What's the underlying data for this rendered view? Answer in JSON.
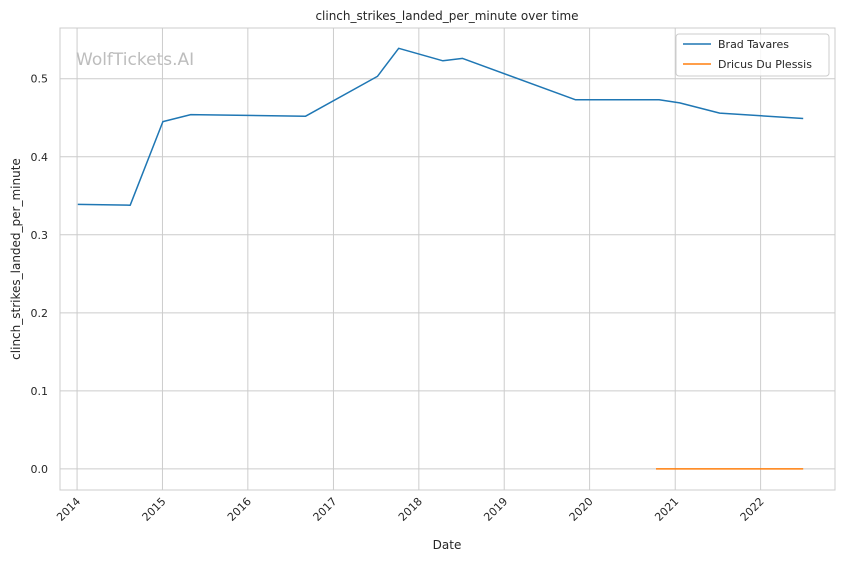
{
  "chart_data": {
    "type": "line",
    "title": "clinch_strikes_landed_per_minute over time",
    "xlabel": "Date",
    "ylabel": "clinch_strikes_landed_per_minute",
    "watermark": "WolfTickets.AI",
    "xlim": [
      "2013-10-20",
      "2022-11-15"
    ],
    "ylim": [
      -0.027,
      0.565
    ],
    "x_ticks": [
      "2014",
      "2015",
      "2016",
      "2017",
      "2018",
      "2019",
      "2020",
      "2021",
      "2022"
    ],
    "y_ticks": [
      "0.0",
      "0.1",
      "0.2",
      "0.3",
      "0.4",
      "0.5"
    ],
    "grid": true,
    "legend_position": "top-right",
    "series": [
      {
        "name": "Brad Tavares",
        "color": "#1f77b4",
        "points": [
          {
            "x": "2014-01-04",
            "y": 0.339
          },
          {
            "x": "2014-08-16",
            "y": 0.338
          },
          {
            "x": "2015-01-03",
            "y": 0.445
          },
          {
            "x": "2015-05-02",
            "y": 0.454
          },
          {
            "x": "2016-09-04",
            "y": 0.452
          },
          {
            "x": "2017-07-08",
            "y": 0.503
          },
          {
            "x": "2017-10-07",
            "y": 0.539
          },
          {
            "x": "2018-04-14",
            "y": 0.523
          },
          {
            "x": "2018-07-07",
            "y": 0.526
          },
          {
            "x": "2019-11-02",
            "y": 0.473
          },
          {
            "x": "2020-10-24",
            "y": 0.473
          },
          {
            "x": "2021-01-20",
            "y": 0.469
          },
          {
            "x": "2021-07-10",
            "y": 0.456
          },
          {
            "x": "2022-07-02",
            "y": 0.449
          }
        ]
      },
      {
        "name": "Dricus Du Plessis",
        "color": "#ff7f0e",
        "points": [
          {
            "x": "2020-10-11",
            "y": 0.0
          },
          {
            "x": "2021-03-20",
            "y": 0.0
          },
          {
            "x": "2021-07-10",
            "y": 0.0
          },
          {
            "x": "2022-01-22",
            "y": 0.0
          },
          {
            "x": "2022-07-02",
            "y": 0.0
          }
        ]
      }
    ]
  }
}
